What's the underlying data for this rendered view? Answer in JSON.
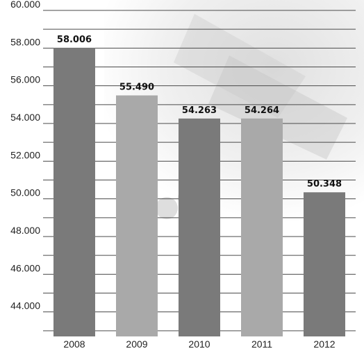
{
  "chart_data": {
    "type": "bar",
    "title": "",
    "xlabel": "",
    "ylabel": "",
    "categories": [
      "2008",
      "2009",
      "2010",
      "2011",
      "2012"
    ],
    "values": [
      58006,
      55490,
      54263,
      54264,
      50348
    ],
    "value_labels": [
      "58.006",
      "55.490",
      "54.263",
      "54.264",
      "50.348"
    ],
    "ylim": [
      42700,
      60000
    ],
    "yticks": [
      44000,
      46000,
      48000,
      50000,
      52000,
      54000,
      56000,
      58000,
      60000
    ],
    "ytick_labels": [
      "44.000",
      "46.000",
      "48.000",
      "50.000",
      "52.000",
      "54.000",
      "56.000",
      "58.000",
      "60.000"
    ],
    "grid": true,
    "legend": "none",
    "bar_colors": [
      "#7a7a7a",
      "#a9a9a9",
      "#7a7a7a",
      "#a9a9a9",
      "#7a7a7a"
    ],
    "background": "euro-banknotes-photo"
  }
}
